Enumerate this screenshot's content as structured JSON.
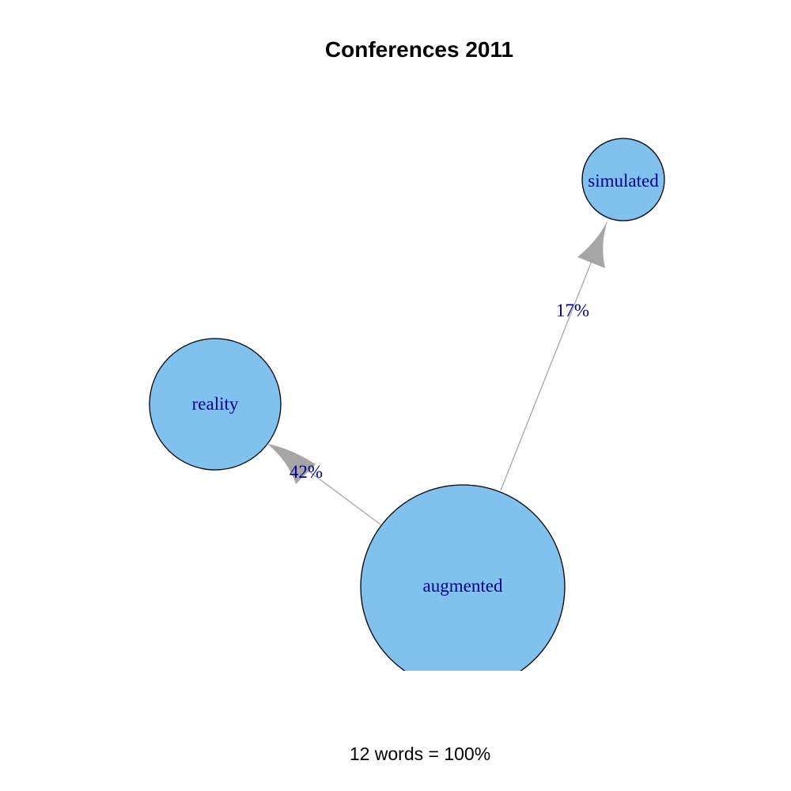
{
  "title": "Conferences 2011",
  "caption": "12 words = 100%",
  "colors": {
    "node_fill": "#80c1ee",
    "node_stroke": "#000000",
    "edge": "#a6a6a6",
    "label_text": "#00008b"
  },
  "nodes": [
    {
      "id": "augmented",
      "label": "augmented"
    },
    {
      "id": "reality",
      "label": "reality"
    },
    {
      "id": "simulated",
      "label": "simulated"
    }
  ],
  "edges": [
    {
      "from": "augmented",
      "to": "reality",
      "label": "42%"
    },
    {
      "from": "augmented",
      "to": "simulated",
      "label": "17%"
    }
  ]
}
